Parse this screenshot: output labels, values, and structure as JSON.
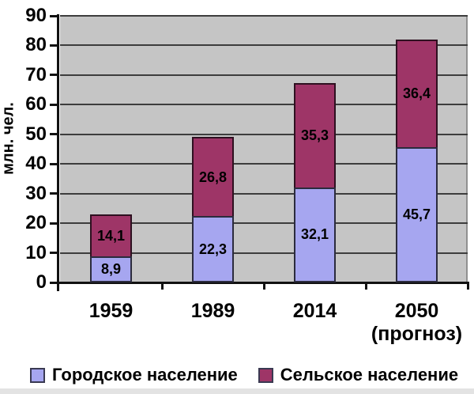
{
  "chart_data": {
    "type": "bar",
    "stacked": true,
    "title": "",
    "categories": [
      "1959",
      "1989",
      "2014",
      "2050"
    ],
    "category_sublabels": [
      "",
      "",
      "",
      "(прогноз)"
    ],
    "series": [
      {
        "name": "Городское население",
        "color": "#a6a6f0",
        "border_color": "#2b2b3d",
        "values": [
          8.9,
          22.3,
          32.1,
          45.7
        ],
        "labels": [
          "8,9",
          "22,3",
          "32,1",
          "45,7"
        ]
      },
      {
        "name": "Сельское население",
        "color": "#9e3567",
        "border_color": "#2e1020",
        "values": [
          14.1,
          26.8,
          35.3,
          36.4
        ],
        "labels": [
          "14,1",
          "26,8",
          "35,3",
          "36,4"
        ]
      }
    ],
    "ylabel": "млн. чел.",
    "ylim": [
      0,
      90
    ],
    "ytick_step": 10,
    "yticks": [
      "0",
      "10",
      "20",
      "30",
      "40",
      "50",
      "60",
      "70",
      "80",
      "90"
    ],
    "grid": true,
    "legend_position": "bottom",
    "colors": {
      "plot_background": "#c5c5c5",
      "gridline": "#3d3d3d",
      "axis": "#111111",
      "bottom_strip": "#e3e3e3"
    }
  }
}
